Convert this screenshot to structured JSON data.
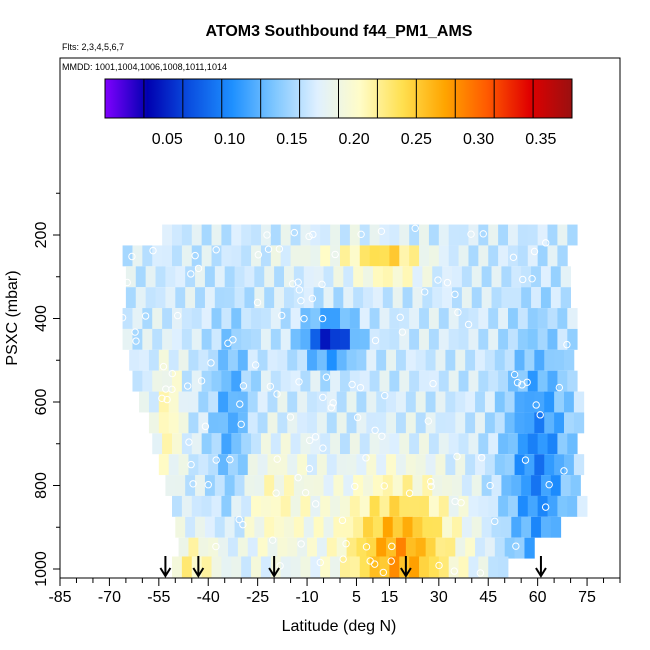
{
  "chart_data": {
    "type": "heatmap",
    "title": "ATOM3 Southbound f44_PM1_AMS",
    "flights_label": "Flts: 2,3,4,5,6,7",
    "dates_label": "MMDD: 1001,1004,1006,1008,1011,1014",
    "xlabel": "Latitude (deg N)",
    "ylabel": "PSXC (mbar)",
    "xlim": [
      -85,
      85
    ],
    "ylim": [
      1010,
      0
    ],
    "x_ticks": [
      "-85",
      "-70",
      "-55",
      "-40",
      "-25",
      "-10",
      "5",
      "15",
      "30",
      "45",
      "60",
      "75"
    ],
    "y_ticks": [
      "200",
      "400",
      "600",
      "800",
      "1000"
    ],
    "colorbar": {
      "range": [
        0.0,
        0.375
      ],
      "tick_labels": [
        "0.05",
        "0.10",
        "0.15",
        "0.20",
        "0.25",
        "0.30",
        "0.35"
      ],
      "tick_values": [
        0.05,
        0.1,
        0.15,
        0.2,
        0.25,
        0.3,
        0.35
      ],
      "colors": [
        "#8000ff",
        "#0000b0",
        "#0a4fe0",
        "#1e90ff",
        "#7fc7ff",
        "#dff0ff",
        "#fffcc8",
        "#ffe050",
        "#ffa500",
        "#ff5a00",
        "#e00000",
        "#9a1010"
      ]
    },
    "arrows_lat": [
      -53,
      -43,
      -20,
      20,
      61
    ],
    "pressure_bins": [
      200,
      250,
      300,
      350,
      400,
      450,
      500,
      550,
      600,
      650,
      700,
      750,
      800,
      850,
      900,
      950,
      995
    ],
    "bin_lat_ranges": [
      [
        -54,
        70
      ],
      [
        -66,
        69
      ],
      [
        -65,
        69
      ],
      [
        -65,
        70
      ],
      [
        -66,
        71
      ],
      [
        -66,
        72
      ],
      [
        -64,
        71
      ],
      [
        -63,
        71
      ],
      [
        -61,
        72
      ],
      [
        -58,
        72
      ],
      [
        -57,
        72
      ],
      [
        -55,
        73
      ],
      [
        -53,
        73
      ],
      [
        -51,
        73
      ],
      [
        -50,
        65
      ],
      [
        -49,
        59
      ],
      [
        -51,
        50
      ]
    ]
  }
}
